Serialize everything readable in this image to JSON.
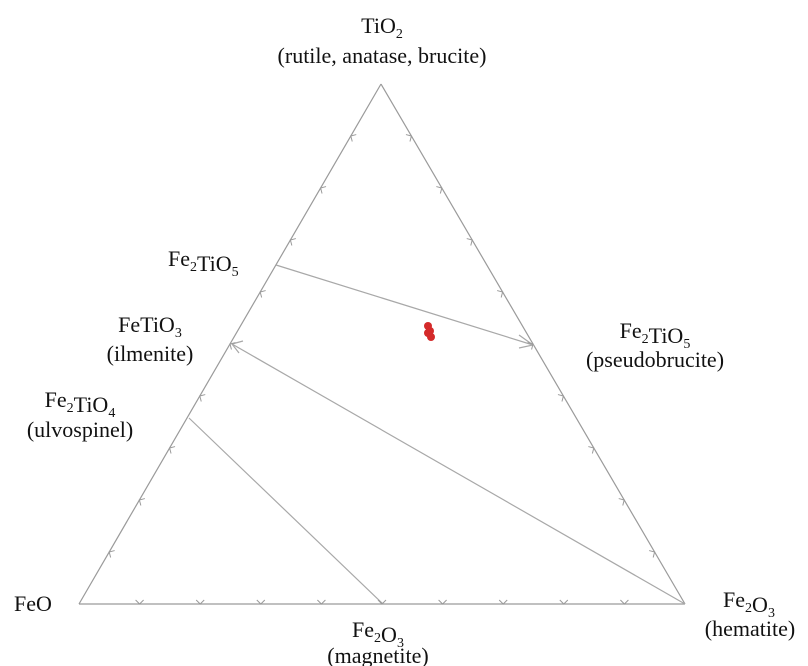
{
  "diagram": {
    "top": {
      "parts": [
        [
          "Ti",
          ""
        ],
        [
          "O",
          "2"
        ]
      ],
      "name": "(rutile, anatase, brucite)"
    },
    "left_edge": {
      "fe2tio5": {
        "parts": [
          [
            "Fe",
            "2"
          ],
          [
            "TiO",
            "5"
          ]
        ]
      },
      "fetio3": {
        "parts": [
          [
            "FeTiO",
            "3"
          ]
        ],
        "name": "(ilmenite)"
      },
      "fe2tio4": {
        "parts": [
          [
            "Fe",
            "2"
          ],
          [
            "TiO",
            "4"
          ]
        ],
        "name": "(ulvospinel)"
      }
    },
    "bottom_left": {
      "parts": [
        [
          "FeO",
          ""
        ]
      ]
    },
    "bottom_mid": {
      "parts": [
        [
          "Fe",
          "2"
        ],
        [
          "O",
          "3"
        ]
      ],
      "name": "(magnetite)"
    },
    "bottom_right": {
      "parts": [
        [
          "Fe",
          "2"
        ],
        [
          "O",
          "3"
        ]
      ],
      "name": "(hematite)"
    },
    "right_edge": {
      "parts": [
        [
          "Fe",
          "2"
        ],
        [
          "TiO",
          "5"
        ]
      ],
      "name": "(pseudobrucite)"
    },
    "colors": {
      "edges": "#9a9a9a",
      "tie_lines": "#a8a8a8",
      "data_points": "#d42a2a"
    }
  }
}
